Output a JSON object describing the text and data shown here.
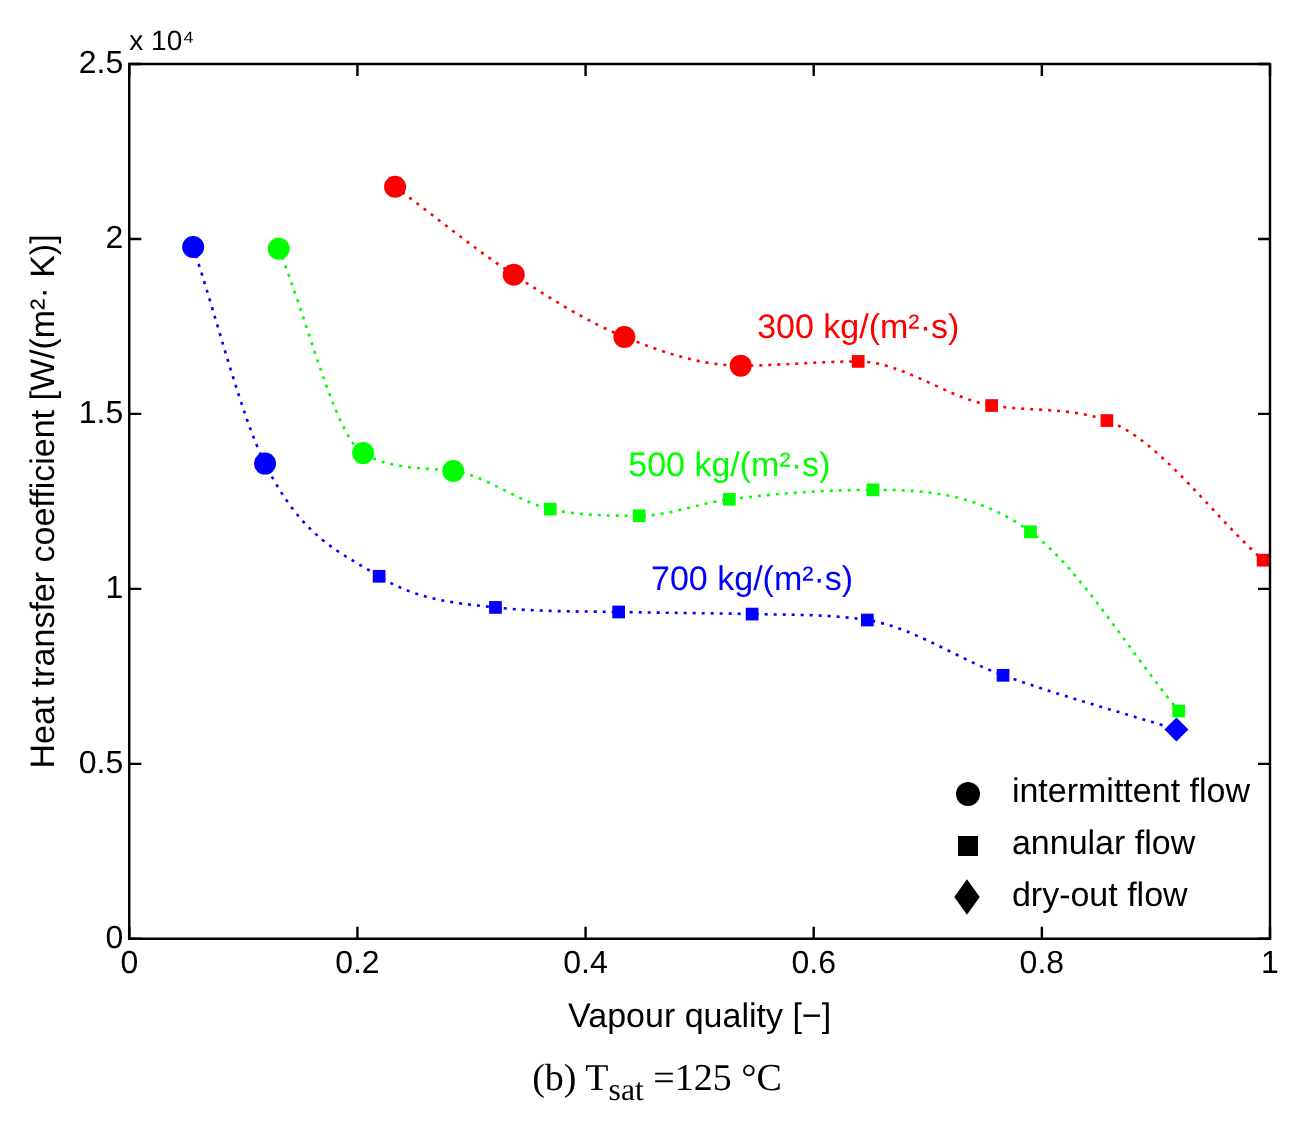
{
  "chart_data": {
    "type": "line",
    "xlabel": "Vapour quality [−]",
    "ylabel": "Heat transfer coefficient [W/(m²· K)]",
    "xlim": [
      0,
      1
    ],
    "xticks": [
      0,
      0.2,
      0.4,
      0.6,
      0.8,
      1
    ],
    "ylim": [
      0,
      2.5
    ],
    "yticks": [
      0,
      0.5,
      1,
      1.5,
      2,
      2.5
    ],
    "grid": false,
    "annotations": [
      "x 10⁴",
      "(b) T$_{sat}$ =125 °C",
      "intermittent flow",
      "annular flow",
      "dry-out flow"
    ],
    "series": [
      {
        "name": "300 kg/(m²·s)",
        "marker": "none",
        "line_style": "dotted",
        "color": "#ff0000",
        "x": [
          0.233,
          0.337,
          0.434,
          0.536,
          0.639,
          0.756,
          0.857,
          0.994
        ],
        "values": [
          2.149,
          1.898,
          1.72,
          1.638,
          1.65,
          1.524,
          1.481,
          1.082
        ]
      },
      {
        "name": "500 kg/(m²·s)",
        "marker": "none",
        "line_style": "dotted",
        "color": "#00ff00",
        "x": [
          0.131,
          0.205,
          0.284,
          0.369,
          0.447,
          0.526,
          0.652,
          0.79,
          0.92
        ],
        "values": [
          1.972,
          1.388,
          1.337,
          1.228,
          1.209,
          1.256,
          1.283,
          1.163,
          0.651
        ]
      },
      {
        "name": "700 kg/(m²·s)",
        "marker": "none",
        "line_style": "dotted",
        "color": "#0000ff",
        "x": [
          0.056,
          0.119,
          0.219,
          0.321,
          0.429,
          0.546,
          0.647,
          0.766,
          0.918
        ],
        "values": [
          1.977,
          1.358,
          1.036,
          0.947,
          0.934,
          0.928,
          0.911,
          0.753,
          0.598
        ]
      },
      {
        "type": "scatter",
        "marker": "circle",
        "x": [
          0.056,
          0.119,
          0.131,
          0.205,
          0.284,
          0.233,
          0.337,
          0.434,
          0.536
        ],
        "values": [
          1.977,
          1.358,
          1.972,
          1.388,
          1.337,
          2.149,
          1.898,
          1.72,
          1.638
        ],
        "colors": [
          "#0000ff",
          "#0000ff",
          "#00ff00",
          "#00ff00",
          "#00ff00",
          "#ff0000",
          "#ff0000",
          "#ff0000",
          "#ff0000"
        ]
      },
      {
        "type": "scatter",
        "marker": "square",
        "x": [
          0.219,
          0.321,
          0.429,
          0.546,
          0.647,
          0.766,
          0.369,
          0.447,
          0.526,
          0.652,
          0.79,
          0.92,
          0.639,
          0.756,
          0.857,
          0.994
        ],
        "values": [
          1.036,
          0.947,
          0.934,
          0.928,
          0.911,
          0.753,
          1.228,
          1.209,
          1.256,
          1.283,
          1.163,
          0.651,
          1.65,
          1.524,
          1.481,
          1.082
        ],
        "colors": [
          "#0000ff",
          "#0000ff",
          "#0000ff",
          "#0000ff",
          "#0000ff",
          "#0000ff",
          "#00ff00",
          "#00ff00",
          "#00ff00",
          "#00ff00",
          "#00ff00",
          "#00ff00",
          "#ff0000",
          "#ff0000",
          "#ff0000",
          "#ff0000"
        ]
      },
      {
        "type": "scatter",
        "marker": "diamond",
        "x": [
          0.918
        ],
        "values": [
          0.598
        ],
        "colors": [
          "#0000ff"
        ]
      }
    ]
  }
}
